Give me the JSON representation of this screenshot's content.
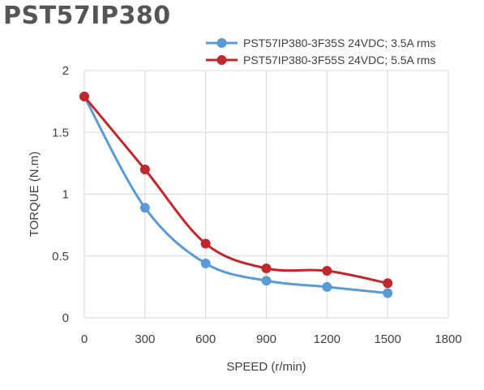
{
  "title": "PST57IP380",
  "chart_data": {
    "type": "line",
    "title": "PST57IP380",
    "xlabel": "SPEED (r/min)",
    "ylabel": "TORQUE (N.m)",
    "xlim": [
      0,
      1800
    ],
    "ylim": [
      0,
      2
    ],
    "x_ticks": [
      "0",
      "300",
      "600",
      "900",
      "1200",
      "1500",
      "1800"
    ],
    "y_ticks": [
      "0",
      "0.5",
      "1",
      "1.5",
      "2"
    ],
    "grid": true,
    "legend_position": "top-right",
    "series": [
      {
        "name": "PST57IP380-3F35S 24VDC; 3.5A rms",
        "color": "#5b9bd5",
        "x": [
          0,
          300,
          600,
          900,
          1200,
          1500
        ],
        "y": [
          1.79,
          0.89,
          0.44,
          0.3,
          0.25,
          0.2
        ]
      },
      {
        "name": "PST57IP380-3F55S 24VDC; 5.5A rms",
        "color": "#c0282d",
        "x": [
          0,
          300,
          600,
          900,
          1200,
          1500
        ],
        "y": [
          1.79,
          1.2,
          0.6,
          0.4,
          0.38,
          0.28
        ]
      }
    ]
  }
}
